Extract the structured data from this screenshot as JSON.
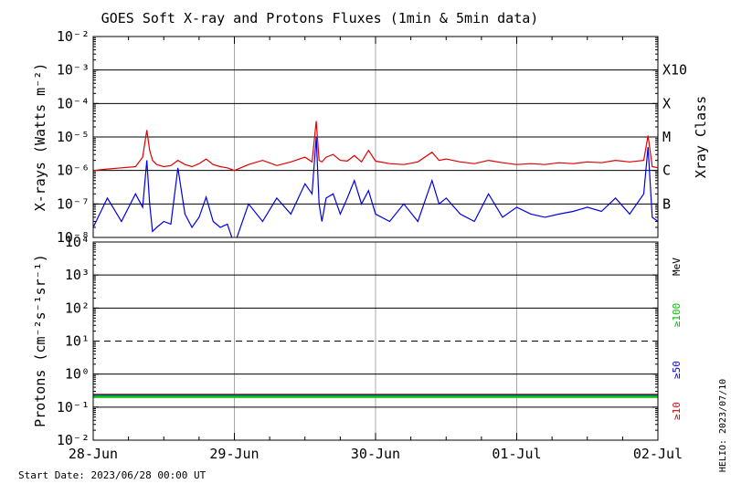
{
  "chart_data": [
    {
      "panel": "xray",
      "type": "line",
      "title": "GOES Soft X-ray and Protons Fluxes   (1min & 5min data)",
      "ylabel": "X-rays (Watts m⁻²)",
      "y_scale": "log",
      "ylim": [
        1e-08,
        0.01
      ],
      "y_tick_labels": [
        "10⁻²",
        "10⁻³",
        "10⁻⁴",
        "10⁻⁵",
        "10⁻⁶",
        "10⁻⁷",
        "10⁻⁸"
      ],
      "y_tick_values": [
        0.01,
        0.001,
        0.0001,
        1e-05,
        1e-06,
        1e-07,
        1e-08
      ],
      "right_axis_label": "Xray Class",
      "class_labels": [
        {
          "label": "X10",
          "value": 0.001
        },
        {
          "label": "X",
          "value": 0.0001
        },
        {
          "label": "M",
          "value": 1e-05
        },
        {
          "label": "C",
          "value": 1e-06
        },
        {
          "label": "B",
          "value": 1e-07
        }
      ],
      "grid": true,
      "series": [
        {
          "color": "#e00000",
          "x": [
            0.0,
            0.1,
            0.2,
            0.3,
            0.35,
            0.38,
            0.4,
            0.42,
            0.45,
            0.5,
            0.55,
            0.6,
            0.65,
            0.7,
            0.75,
            0.8,
            0.85,
            0.9,
            0.95,
            1.0,
            1.1,
            1.2,
            1.3,
            1.4,
            1.5,
            1.55,
            1.58,
            1.6,
            1.62,
            1.65,
            1.7,
            1.75,
            1.8,
            1.85,
            1.9,
            1.95,
            2.0,
            2.1,
            2.2,
            2.3,
            2.4,
            2.45,
            2.5,
            2.6,
            2.7,
            2.8,
            2.9,
            3.0,
            3.1,
            3.2,
            3.3,
            3.4,
            3.5,
            3.6,
            3.7,
            3.8,
            3.9,
            3.93,
            3.96,
            4.0
          ],
          "values": [
            1e-06,
            1.1e-06,
            1.2e-06,
            1.3e-06,
            2.5e-06,
            1.6e-05,
            4e-06,
            2e-06,
            1.5e-06,
            1.3e-06,
            1.4e-06,
            2e-06,
            1.5e-06,
            1.3e-06,
            1.6e-06,
            2.2e-06,
            1.5e-06,
            1.3e-06,
            1.2e-06,
            1e-06,
            1.5e-06,
            2e-06,
            1.4e-06,
            1.8e-06,
            2.5e-06,
            1.8e-06,
            3e-05,
            2e-06,
            1.8e-06,
            2.5e-06,
            3e-06,
            2e-06,
            1.9e-06,
            2.8e-06,
            1.8e-06,
            4e-06,
            1.9e-06,
            1.6e-06,
            1.5e-06,
            1.8e-06,
            3.5e-06,
            2e-06,
            2.2e-06,
            1.8e-06,
            1.6e-06,
            2e-06,
            1.7e-06,
            1.5e-06,
            1.6e-06,
            1.5e-06,
            1.7e-06,
            1.6e-06,
            1.8e-06,
            1.7e-06,
            2e-06,
            1.8e-06,
            2e-06,
            1.1e-05,
            1.3e-06,
            1.2e-06
          ]
        },
        {
          "color": "#0000e0",
          "x": [
            0.0,
            0.1,
            0.2,
            0.3,
            0.35,
            0.38,
            0.4,
            0.42,
            0.45,
            0.5,
            0.55,
            0.6,
            0.65,
            0.7,
            0.75,
            0.8,
            0.85,
            0.9,
            0.95,
            1.0,
            1.1,
            1.2,
            1.3,
            1.4,
            1.5,
            1.55,
            1.58,
            1.6,
            1.62,
            1.65,
            1.7,
            1.75,
            1.8,
            1.85,
            1.9,
            1.95,
            2.0,
            2.1,
            2.2,
            2.3,
            2.4,
            2.45,
            2.5,
            2.6,
            2.7,
            2.8,
            2.9,
            3.0,
            3.1,
            3.2,
            3.3,
            3.4,
            3.5,
            3.6,
            3.7,
            3.8,
            3.9,
            3.93,
            3.96,
            4.0
          ],
          "values": [
            2e-08,
            1.5e-07,
            3e-08,
            2e-07,
            8e-08,
            2e-06,
            1e-07,
            1.5e-08,
            2e-08,
            3e-08,
            2.5e-08,
            1.2e-06,
            5e-08,
            2e-08,
            4e-08,
            1.6e-07,
            3e-08,
            2e-08,
            2.5e-08,
            6e-09,
            1e-07,
            3e-08,
            1.5e-07,
            5e-08,
            4e-07,
            2e-07,
            1e-05,
            1e-07,
            3e-08,
            1.5e-07,
            2e-07,
            5e-08,
            1.5e-07,
            5e-07,
            1e-07,
            2.5e-07,
            5e-08,
            3e-08,
            1e-07,
            3e-08,
            5e-07,
            1e-07,
            1.5e-07,
            5e-08,
            3e-08,
            2e-07,
            4e-08,
            8e-08,
            5e-08,
            4e-08,
            5e-08,
            6e-08,
            8e-08,
            6e-08,
            1.5e-07,
            5e-08,
            2e-07,
            5e-06,
            4e-08,
            3e-08
          ]
        }
      ]
    },
    {
      "panel": "protons",
      "type": "line",
      "ylabel": "Protons (cm⁻²s⁻¹sr⁻¹)",
      "y_scale": "log",
      "ylim": [
        0.01,
        10000
      ],
      "y_tick_labels": [
        "10⁴",
        "10³",
        "10²",
        "10¹",
        "10⁰",
        "10⁻¹",
        "10⁻²"
      ],
      "y_tick_values": [
        10000,
        1000,
        100,
        10,
        1,
        0.1,
        0.01
      ],
      "threshold_line": 10,
      "right_axis_unit": "MeV",
      "energy_labels": [
        {
          "label": "≥100",
          "color": "#00c000"
        },
        {
          "label": "≥50",
          "color": "#0000e0"
        },
        {
          "label": "≥10",
          "color": "#e00000"
        }
      ],
      "grid": true,
      "series": [
        {
          "color": "#e00000",
          "x": [
            0,
            4
          ],
          "values": [
            0.23,
            0.23
          ]
        },
        {
          "color": "#0000e0",
          "x": [
            0,
            4
          ],
          "values": [
            0.22,
            0.22
          ]
        },
        {
          "color": "#00c000",
          "x": [
            0,
            4
          ],
          "values": [
            0.21,
            0.21
          ]
        }
      ],
      "x_tick_labels": [
        "28-Jun",
        "29-Jun",
        "30-Jun",
        "01-Jul",
        "02-Jul"
      ],
      "xlim": [
        0,
        4
      ]
    }
  ],
  "footer": {
    "start_date": "Start Date: 2023/06/28 00:00 UT",
    "stamp": "HELIO: 2023/07/10"
  }
}
